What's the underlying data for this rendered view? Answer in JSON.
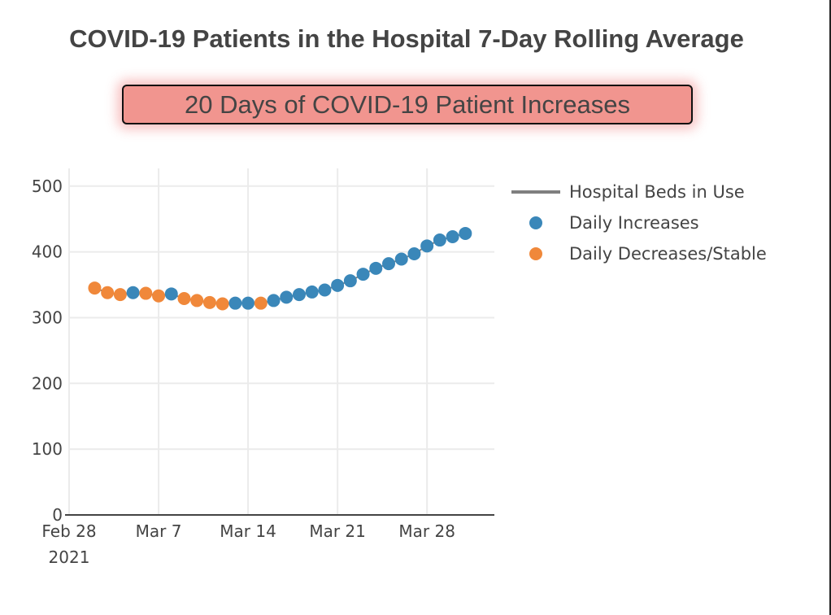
{
  "title": "COVID-19 Patients in the Hospital 7-Day Rolling Average",
  "banner": "20 Days of COVID-19 Patient Increases",
  "colors": {
    "increase": "#3a87b9",
    "decrease": "#f0883a",
    "line": "#7f7f7f",
    "grid": "#ebebeb",
    "axis": "#444444",
    "banner_bg": "#f1958f"
  },
  "chart_data": {
    "type": "line",
    "title": "COVID-19 Patients in the Hospital 7-Day Rolling Average",
    "xlabel": "",
    "ylabel": "",
    "ylim": [
      0,
      520
    ],
    "xlim_days_from_feb28": [
      -0.2,
      33.3
    ],
    "grid": true,
    "legend_position": "top-right (outside plot)",
    "x_ticks": [
      {
        "label": "Feb 28",
        "sublabel": "2021",
        "day": 0
      },
      {
        "label": "Mar 7",
        "day": 7
      },
      {
        "label": "Mar 14",
        "day": 14
      },
      {
        "label": "Mar 21",
        "day": 21
      },
      {
        "label": "Mar 28",
        "day": 28
      }
    ],
    "y_ticks": [
      0,
      100,
      200,
      300,
      400,
      500
    ],
    "legend": [
      {
        "name": "Hospital Beds in Use",
        "kind": "line"
      },
      {
        "name": "Daily Increases",
        "kind": "marker-increase"
      },
      {
        "name": "Daily Decreases/Stable",
        "kind": "marker-decrease"
      }
    ],
    "series": [
      {
        "name": "Hospital Beds in Use",
        "x": [
          "Mar 2",
          "Mar 3",
          "Mar 4",
          "Mar 5",
          "Mar 6",
          "Mar 7",
          "Mar 8",
          "Mar 9",
          "Mar 10",
          "Mar 11",
          "Mar 12",
          "Mar 13",
          "Mar 14",
          "Mar 15",
          "Mar 16",
          "Mar 17",
          "Mar 18",
          "Mar 19",
          "Mar 20",
          "Mar 21",
          "Mar 22",
          "Mar 23",
          "Mar 24",
          "Mar 25",
          "Mar 26",
          "Mar 27",
          "Mar 28",
          "Mar 29",
          "Mar 30",
          "Mar 31"
        ],
        "day": [
          2,
          3,
          4,
          5,
          6,
          7,
          8,
          9,
          10,
          11,
          12,
          13,
          14,
          15,
          16,
          17,
          18,
          19,
          20,
          21,
          22,
          23,
          24,
          25,
          26,
          27,
          28,
          29,
          30,
          31
        ],
        "values": [
          345,
          338,
          335,
          338,
          337,
          333,
          336,
          329,
          326,
          323,
          321,
          322,
          322,
          322,
          326,
          331,
          335,
          339,
          342,
          349,
          356,
          366,
          375,
          382,
          389,
          397,
          409,
          418,
          423,
          428
        ],
        "status": [
          "decrease",
          "decrease",
          "decrease",
          "increase",
          "decrease",
          "decrease",
          "increase",
          "decrease",
          "decrease",
          "decrease",
          "decrease",
          "increase",
          "increase",
          "decrease",
          "increase",
          "increase",
          "increase",
          "increase",
          "increase",
          "increase",
          "increase",
          "increase",
          "increase",
          "increase",
          "increase",
          "increase",
          "increase",
          "increase",
          "increase",
          "increase"
        ]
      }
    ]
  }
}
